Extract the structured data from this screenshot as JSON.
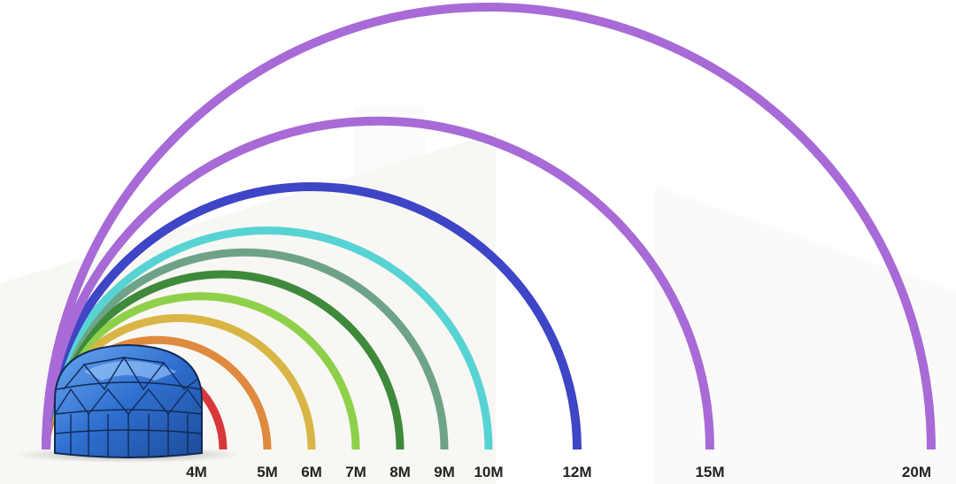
{
  "diagram": {
    "subject": "geodesic dome size comparison",
    "illustration_icon": "geodesic-dome-icon",
    "sizes": [
      {
        "label": "4M",
        "diameter_m": 4,
        "color": "#d9383a"
      },
      {
        "label": "5M",
        "diameter_m": 5,
        "color": "#df8a3e"
      },
      {
        "label": "6M",
        "diameter_m": 6,
        "color": "#d9b545"
      },
      {
        "label": "7M",
        "diameter_m": 7,
        "color": "#8fd04b"
      },
      {
        "label": "8M",
        "diameter_m": 8,
        "color": "#3e8a3a"
      },
      {
        "label": "9M",
        "diameter_m": 9,
        "color": "#6fa387"
      },
      {
        "label": "10M",
        "diameter_m": 10,
        "color": "#57d3d3"
      },
      {
        "label": "12M",
        "diameter_m": 12,
        "color": "#3e45c6"
      },
      {
        "label": "15M",
        "diameter_m": 15,
        "color": "#a86ad6"
      },
      {
        "label": "20M",
        "diameter_m": 20,
        "color": "#a86ad6"
      }
    ]
  }
}
